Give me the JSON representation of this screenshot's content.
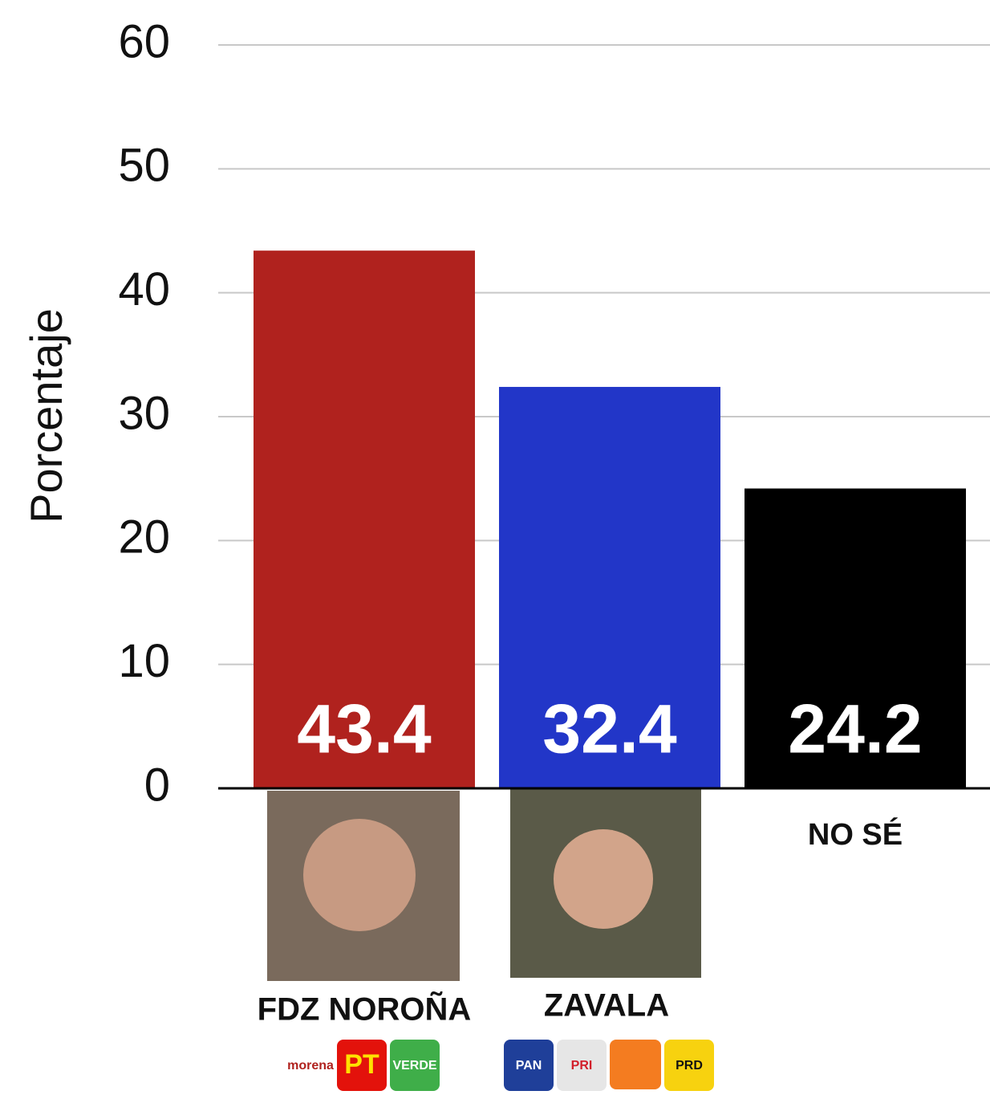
{
  "chart_data": {
    "type": "bar",
    "y_label": "Porcentaje",
    "categories": [
      "FDZ NOROÑA",
      "ZAVALA",
      "NO SÉ"
    ],
    "values": [
      43.4,
      32.4,
      24.2
    ],
    "colors": [
      "#b0221e",
      "#2236c8",
      "#000000"
    ],
    "ylim": [
      0,
      60
    ],
    "yticks": [
      0,
      10,
      20,
      30,
      40,
      50,
      60
    ],
    "grid": true,
    "party_logos": [
      [
        "morena",
        "PT",
        "VERDE"
      ],
      [
        "PAN",
        "PRI",
        "PRD"
      ]
    ]
  }
}
